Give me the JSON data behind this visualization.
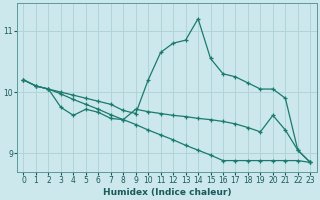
{
  "xlabel": "Humidex (Indice chaleur)",
  "bg_color": "#cce8ec",
  "grid_color": "#b0d4d8",
  "line_color": "#1a7a6e",
  "xlim": [
    -0.5,
    23.5
  ],
  "ylim": [
    8.7,
    11.45
  ],
  "yticks": [
    9,
    10,
    11
  ],
  "xticks": [
    0,
    1,
    2,
    3,
    4,
    5,
    6,
    7,
    8,
    9,
    10,
    11,
    12,
    13,
    14,
    15,
    16,
    17,
    18,
    19,
    20,
    21,
    22,
    23
  ],
  "line1_x": [
    0,
    1,
    2,
    3,
    4,
    5,
    6,
    7,
    8,
    9,
    10,
    11,
    12,
    13,
    14,
    15,
    16,
    17,
    18,
    19,
    20,
    21,
    22,
    23
  ],
  "line1_y": [
    10.2,
    10.1,
    10.05,
    10.0,
    9.95,
    9.9,
    9.85,
    9.8,
    9.7,
    9.65,
    10.2,
    10.65,
    10.8,
    10.85,
    11.2,
    10.55,
    10.3,
    10.25,
    10.15,
    10.05,
    10.05,
    9.9,
    9.05,
    8.85
  ],
  "line2_x": [
    0,
    1,
    2,
    3,
    4,
    5,
    6,
    7,
    8,
    9,
    10,
    11,
    12,
    13,
    14,
    15,
    16,
    17,
    18,
    19,
    20,
    21,
    22,
    23
  ],
  "line2_y": [
    10.2,
    10.1,
    10.05,
    9.75,
    9.62,
    9.72,
    9.67,
    9.57,
    9.55,
    9.72,
    9.68,
    9.65,
    9.62,
    9.6,
    9.57,
    9.55,
    9.52,
    9.48,
    9.42,
    9.35,
    9.62,
    9.38,
    9.05,
    8.85
  ],
  "line3_x": [
    0,
    1,
    2,
    3,
    4,
    5,
    6,
    7,
    8,
    9,
    10,
    11,
    12,
    13,
    14,
    15,
    16,
    17,
    18,
    19,
    20,
    21,
    22,
    23
  ],
  "line3_y": [
    10.2,
    10.1,
    10.05,
    9.97,
    9.88,
    9.8,
    9.72,
    9.63,
    9.55,
    9.47,
    9.38,
    9.3,
    9.22,
    9.13,
    9.05,
    8.97,
    8.88,
    8.88,
    8.88,
    8.88,
    8.88,
    8.88,
    8.88,
    8.85
  ]
}
